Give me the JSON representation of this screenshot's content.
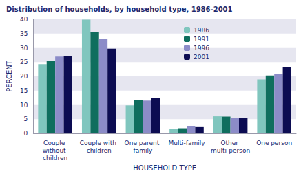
{
  "chart_data": {
    "type": "bar",
    "title": "Distribution of households, by household type, 1986-2001",
    "x_label": "HOUSEHOLD TYPE",
    "y_label": "PERCENT",
    "categories": [
      "Couple without children",
      "Couple with children",
      "One parent family",
      "Multi-family",
      "Other multi-person",
      "One person"
    ],
    "series": [
      {
        "name": "1986",
        "color": "#80c6be",
        "values": [
          24.3,
          39.9,
          9.8,
          1.6,
          6.0,
          18.9
        ]
      },
      {
        "name": "1991",
        "color": "#0f6e5e",
        "values": [
          25.4,
          35.4,
          11.7,
          1.8,
          5.9,
          20.3
        ]
      },
      {
        "name": "1996",
        "color": "#8c8cc8",
        "values": [
          26.9,
          33.0,
          11.5,
          2.5,
          5.3,
          20.9
        ]
      },
      {
        "name": "2001",
        "color": "#0c0c52",
        "values": [
          27.1,
          29.7,
          12.3,
          2.2,
          5.4,
          23.3
        ]
      }
    ],
    "ylim": [
      0,
      40
    ],
    "yticks": [
      0,
      5,
      10,
      15,
      20,
      25,
      30,
      35,
      40
    ],
    "grid": true,
    "legend": "upper right"
  }
}
